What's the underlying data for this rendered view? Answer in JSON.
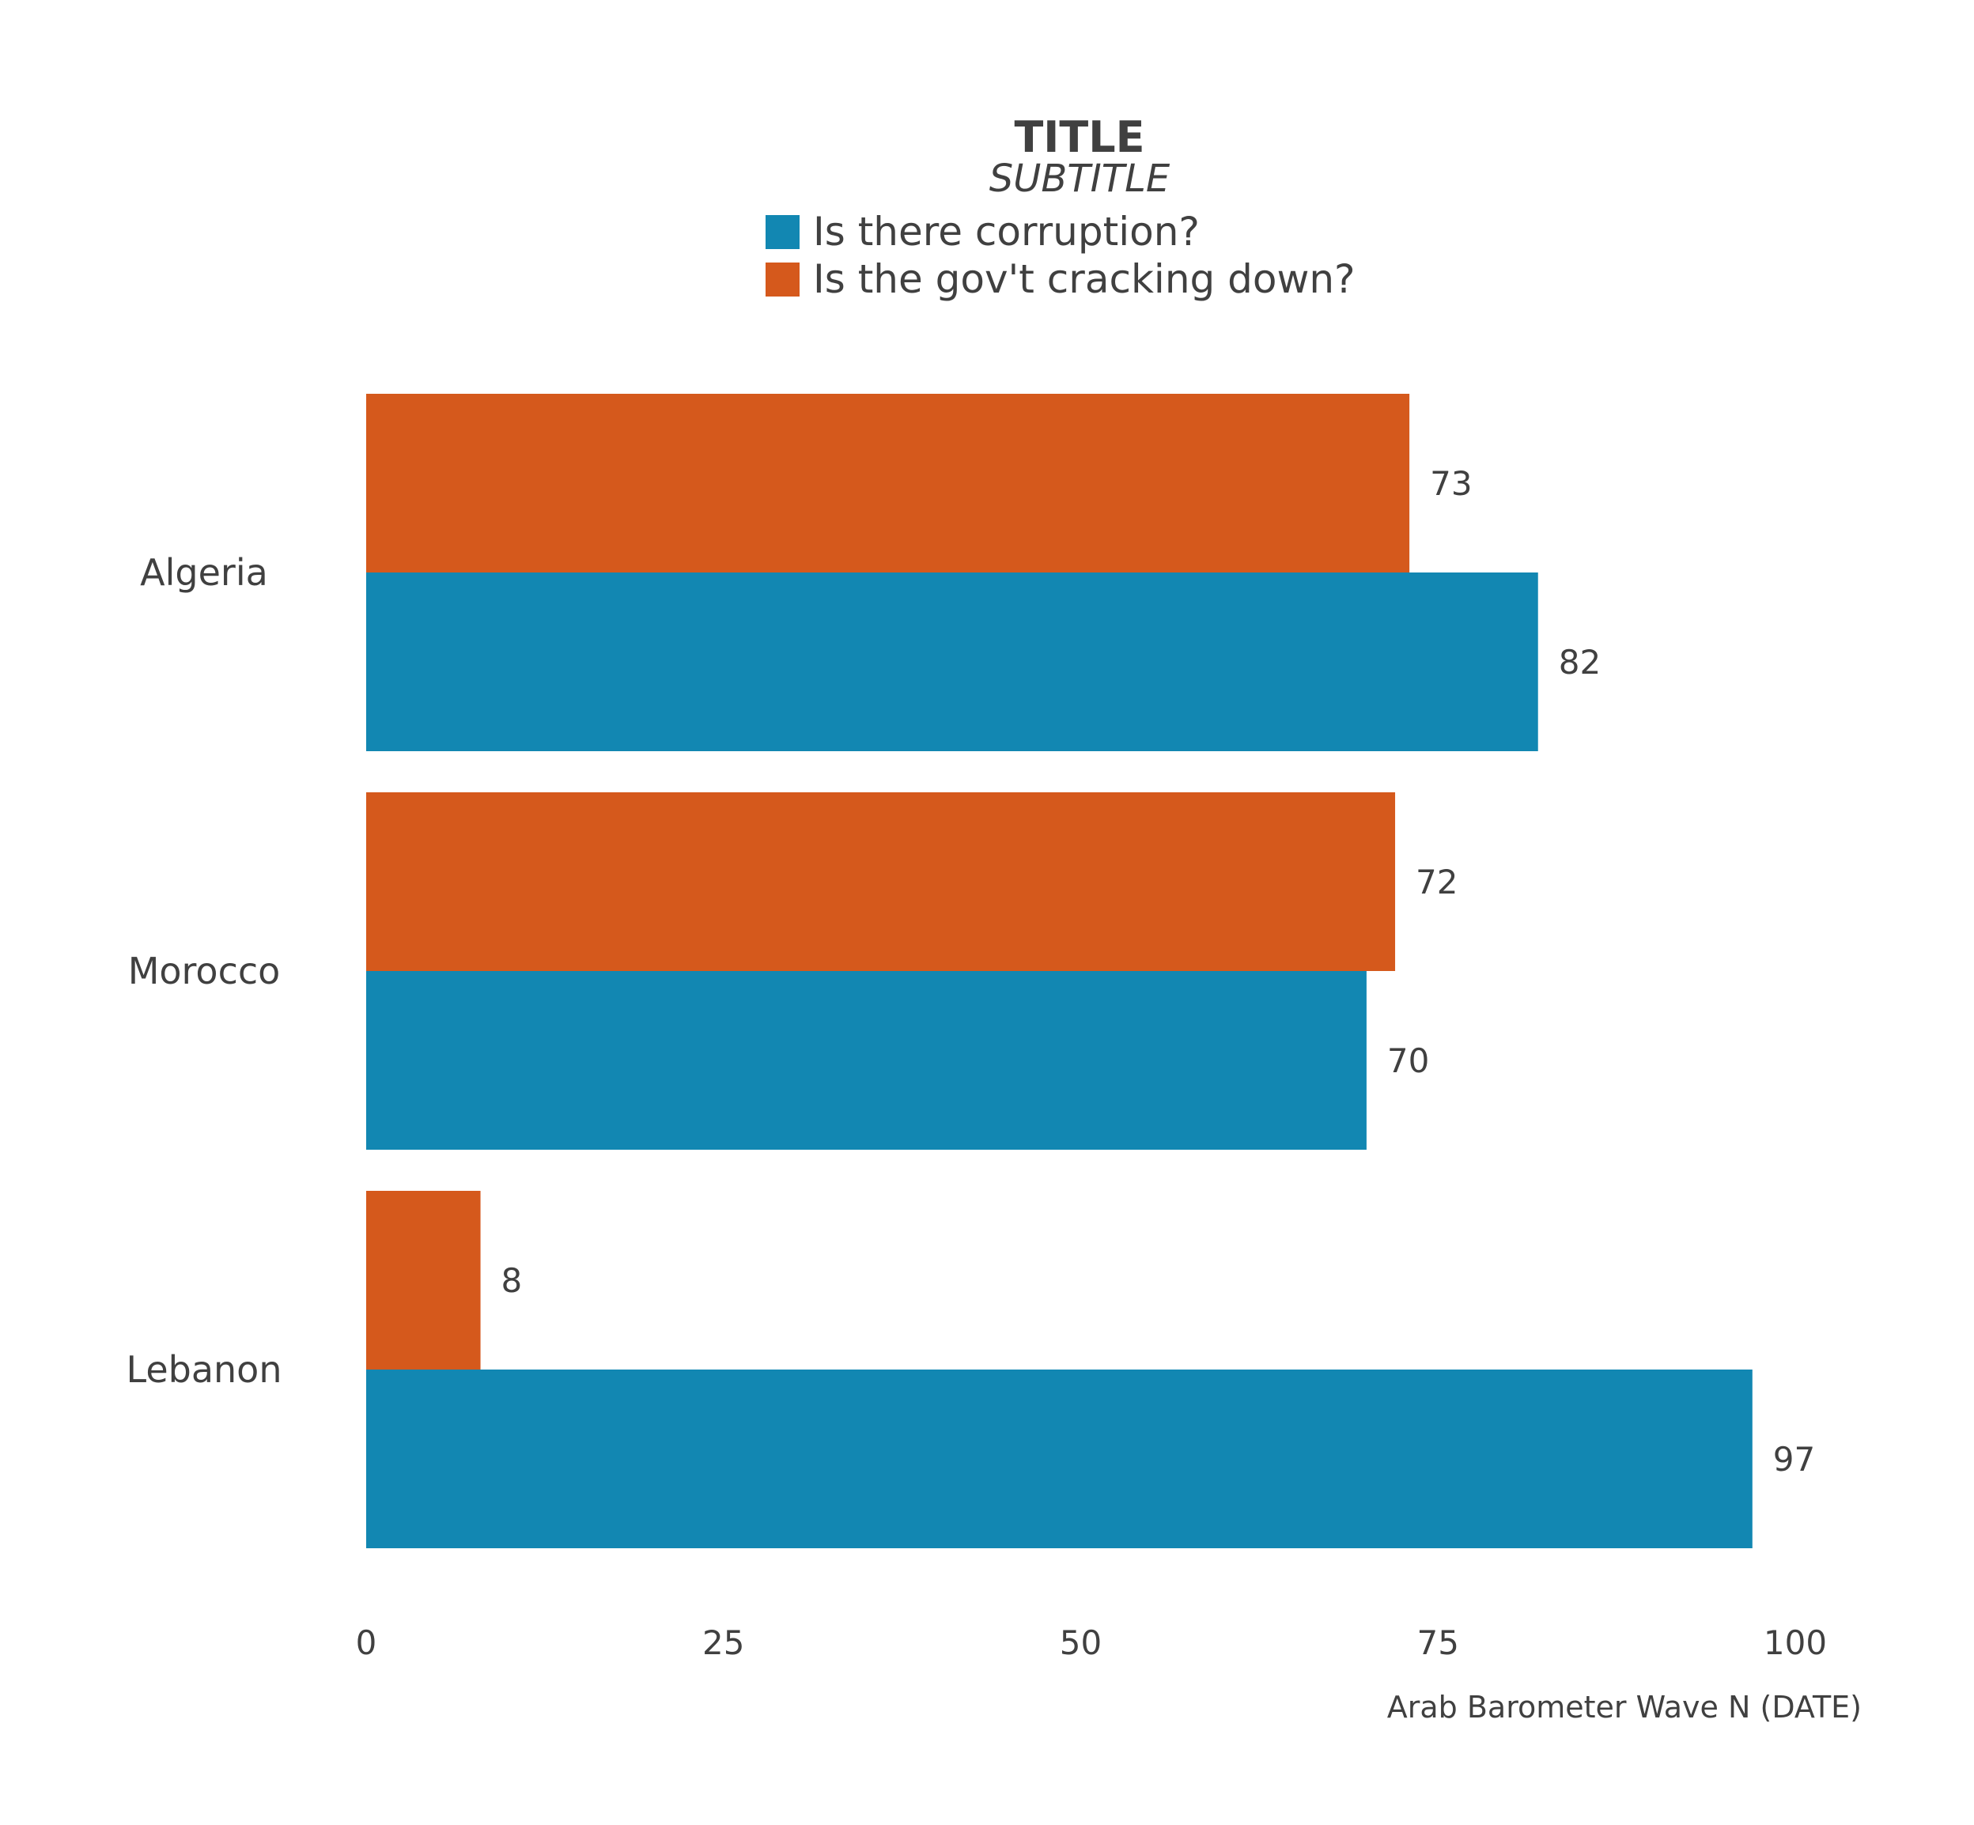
{
  "chart_data": {
    "type": "bar",
    "orientation": "horizontal",
    "title": "TITLE",
    "subtitle": "SUBTITLE",
    "caption": "Arab Barometer Wave N (DATE)",
    "categories": [
      "Algeria",
      "Morocco",
      "Lebanon"
    ],
    "series": [
      {
        "name": "Is there corruption?",
        "color": "#1287b2",
        "values": [
          82,
          70,
          97
        ]
      },
      {
        "name": "Is the gov't cracking down?",
        "color": "#d5591c",
        "values": [
          73,
          72,
          8
        ]
      }
    ],
    "xlim": [
      0,
      100
    ],
    "xticks": [
      "0",
      "25",
      "50",
      "75",
      "100"
    ],
    "grid": false,
    "legend_position": "top",
    "data_labels": true
  }
}
